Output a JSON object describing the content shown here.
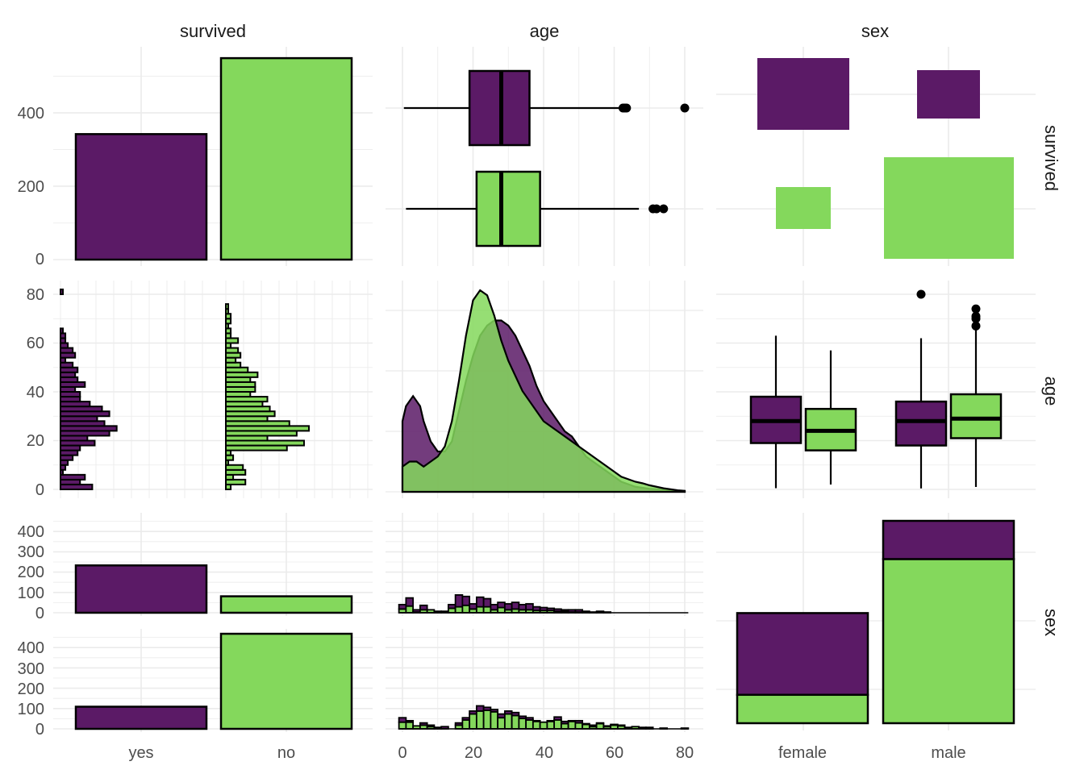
{
  "colors": {
    "yes": "#5b1a66",
    "no": "#84d85c",
    "grid": "#ebebeb",
    "outline": "#000000"
  },
  "strips": {
    "top": [
      "survived",
      "age",
      "sex"
    ],
    "right": [
      "survived",
      "age",
      "sex"
    ]
  },
  "chart_data": [
    {
      "panel": "survived-survived",
      "type": "bar",
      "categories": [
        "yes",
        "no"
      ],
      "values": [
        342,
        549
      ],
      "ylim": [
        0,
        580
      ],
      "yticks": [
        0,
        200,
        400
      ]
    },
    {
      "panel": "age-survived",
      "type": "boxplot",
      "series": [
        {
          "name": "yes",
          "whisker_low": 0.4,
          "q1": 19,
          "median": 28,
          "q3": 36,
          "whisker_high": 62,
          "outliers": [
            62.5,
            63,
            63.5,
            80
          ]
        },
        {
          "name": "no",
          "whisker_low": 1,
          "q1": 21,
          "median": 28,
          "q3": 39,
          "whisker_high": 67,
          "outliers": [
            71,
            72,
            74
          ]
        }
      ],
      "xlim": [
        -1,
        82
      ]
    },
    {
      "panel": "sex-survived",
      "type": "mosaic",
      "categories": [
        "female",
        "male"
      ],
      "rows": [
        "yes",
        "no"
      ],
      "counts": {
        "female": {
          "yes": 233,
          "no": 81
        },
        "male": {
          "yes": 109,
          "no": 468
        }
      }
    },
    {
      "panel": "survived-age",
      "type": "histogram",
      "orientation": "horizontal",
      "bin_width": 2,
      "ylim": [
        -1,
        83
      ],
      "yticks": [
        0,
        20,
        40,
        60,
        80
      ],
      "series": [
        {
          "name": "yes",
          "bins": [
            0,
            2,
            4,
            6,
            8,
            10,
            12,
            14,
            16,
            18,
            20,
            22,
            24,
            26,
            28,
            30,
            32,
            34,
            36,
            38,
            40,
            42,
            44,
            46,
            48,
            50,
            52,
            54,
            56,
            58,
            60,
            62,
            64,
            80
          ],
          "counts": [
            13,
            8,
            10,
            1,
            2,
            3,
            5,
            7,
            8,
            14,
            11,
            20,
            23,
            18,
            15,
            20,
            17,
            12,
            8,
            8,
            6,
            10,
            7,
            6,
            7,
            5,
            2,
            6,
            5,
            3,
            2,
            2,
            1,
            1
          ]
        },
        {
          "name": "no",
          "bins": [
            0,
            2,
            4,
            6,
            8,
            10,
            12,
            14,
            16,
            18,
            20,
            22,
            24,
            26,
            28,
            30,
            32,
            34,
            36,
            38,
            40,
            42,
            44,
            46,
            48,
            50,
            52,
            54,
            56,
            58,
            60,
            62,
            64,
            66,
            68,
            70,
            72,
            74
          ],
          "counts": [
            2,
            8,
            3,
            8,
            7,
            1,
            3,
            2,
            25,
            32,
            17,
            29,
            34,
            26,
            17,
            20,
            18,
            15,
            17,
            10,
            12,
            12,
            10,
            13,
            9,
            6,
            4,
            6,
            5,
            2,
            5,
            2,
            2,
            1,
            2,
            2,
            1,
            1
          ]
        }
      ],
      "xlim_counts": [
        0,
        36
      ]
    },
    {
      "panel": "age-age",
      "type": "area",
      "series": [
        {
          "name": "yes",
          "x": [
            0,
            1,
            3,
            5,
            6,
            8,
            10,
            12,
            14,
            16,
            18,
            20,
            22,
            24,
            26,
            28,
            30,
            32,
            34,
            36,
            38,
            40,
            42,
            44,
            46,
            48,
            50,
            52,
            54,
            56,
            58,
            60,
            62,
            64,
            66,
            68,
            70,
            72,
            74,
            76,
            78,
            80
          ],
          "y": [
            0.014,
            0.017,
            0.019,
            0.017,
            0.014,
            0.01,
            0.008,
            0.008,
            0.01,
            0.016,
            0.022,
            0.027,
            0.031,
            0.033,
            0.034,
            0.034,
            0.033,
            0.031,
            0.028,
            0.025,
            0.021,
            0.018,
            0.016,
            0.014,
            0.012,
            0.011,
            0.009,
            0.007,
            0.006,
            0.005,
            0.004,
            0.003,
            0.002,
            0.0015,
            0.001,
            0.0008,
            0.0006,
            0.0005,
            0.0004,
            0.0003,
            0.0002,
            0.0001
          ]
        },
        {
          "name": "no",
          "x": [
            0,
            2,
            4,
            6,
            8,
            10,
            12,
            14,
            16,
            18,
            20,
            22,
            24,
            26,
            28,
            30,
            32,
            34,
            36,
            38,
            40,
            42,
            44,
            46,
            48,
            50,
            52,
            54,
            56,
            58,
            60,
            62,
            64,
            66,
            68,
            70,
            72,
            74,
            76,
            78,
            80
          ],
          "y": [
            0.005,
            0.006,
            0.006,
            0.005,
            0.006,
            0.007,
            0.009,
            0.014,
            0.022,
            0.031,
            0.038,
            0.04,
            0.039,
            0.035,
            0.03,
            0.026,
            0.023,
            0.02,
            0.018,
            0.016,
            0.014,
            0.013,
            0.012,
            0.011,
            0.01,
            0.009,
            0.008,
            0.007,
            0.006,
            0.005,
            0.004,
            0.003,
            0.0025,
            0.002,
            0.0017,
            0.0013,
            0.001,
            0.0007,
            0.0005,
            0.0003,
            0.0002
          ]
        }
      ],
      "xlim": [
        -1,
        82
      ]
    },
    {
      "panel": "sex-age",
      "type": "boxplot",
      "groups": [
        "female",
        "male"
      ],
      "series": [
        {
          "group": "female",
          "name": "yes",
          "whisker_low": 0.5,
          "q1": 19,
          "median": 28,
          "q3": 38,
          "whisker_high": 63,
          "outliers": []
        },
        {
          "group": "female",
          "name": "no",
          "whisker_low": 2,
          "q1": 16,
          "median": 24,
          "q3": 33,
          "whisker_high": 57,
          "outliers": []
        },
        {
          "group": "male",
          "name": "yes",
          "whisker_low": 0.4,
          "q1": 18,
          "median": 28,
          "q3": 36,
          "whisker_high": 62,
          "outliers": [
            80
          ]
        },
        {
          "group": "male",
          "name": "no",
          "whisker_low": 1,
          "q1": 21,
          "median": 29,
          "q3": 39,
          "whisker_high": 66,
          "outliers": [
            67,
            70,
            71,
            74
          ]
        }
      ],
      "ylim": [
        -1,
        83
      ]
    },
    {
      "panel": "survived-sex",
      "type": "bar",
      "facets": [
        "female",
        "male"
      ],
      "categories": [
        "yes",
        "no"
      ],
      "values": {
        "female": [
          233,
          81
        ],
        "male": [
          109,
          468
        ]
      },
      "ylim": [
        0,
        480
      ],
      "yticks": [
        0,
        100,
        200,
        300,
        400
      ]
    },
    {
      "panel": "age-sex",
      "type": "histogram",
      "stacked": true,
      "bin_width": 2,
      "facets": [
        "female",
        "male"
      ],
      "x": [
        0,
        2,
        4,
        6,
        8,
        10,
        12,
        14,
        16,
        18,
        20,
        22,
        24,
        26,
        28,
        30,
        32,
        34,
        36,
        38,
        40,
        42,
        44,
        46,
        48,
        50,
        52,
        54,
        56,
        58,
        60,
        62,
        64,
        66,
        68,
        70,
        72,
        74,
        76,
        78,
        80
      ],
      "counts": {
        "female": {
          "yes": [
            6,
            11,
            3,
            6,
            0,
            0,
            1,
            5,
            16,
            12,
            7,
            13,
            11,
            7,
            7,
            8,
            9,
            7,
            8,
            5,
            4,
            3,
            3,
            2,
            3,
            3,
            0,
            0,
            1,
            1,
            0,
            0,
            0,
            0,
            0,
            0,
            0,
            0,
            0,
            0,
            0
          ],
          "no": [
            5,
            9,
            1,
            4,
            4,
            2,
            1,
            6,
            8,
            10,
            5,
            8,
            8,
            4,
            7,
            4,
            5,
            4,
            4,
            3,
            3,
            3,
            2,
            2,
            1,
            1,
            2,
            1,
            1,
            0,
            0,
            0,
            0,
            0,
            0,
            0,
            0,
            0,
            0,
            0,
            0
          ]
        },
        "male": {
          "yes": [
            6,
            2,
            0,
            3,
            2,
            0,
            3,
            0,
            3,
            3,
            4,
            7,
            4,
            3,
            5,
            4,
            4,
            3,
            3,
            1,
            0,
            1,
            4,
            3,
            1,
            3,
            1,
            2,
            1,
            1,
            1,
            1,
            0,
            0,
            0,
            0,
            0,
            0,
            0,
            0,
            0
          ],
          "no": [
            9,
            9,
            4,
            5,
            3,
            2,
            0,
            0,
            5,
            12,
            20,
            24,
            25,
            23,
            15,
            20,
            18,
            14,
            12,
            10,
            9,
            10,
            12,
            7,
            10,
            8,
            6,
            3,
            7,
            3,
            5,
            4,
            2,
            3,
            2,
            2,
            0,
            1,
            0,
            0,
            1
          ]
        }
      },
      "ylim": [
        0,
        480
      ],
      "yticks": [
        0,
        100,
        200,
        300,
        400
      ],
      "xticks": [
        0,
        20,
        40,
        60,
        80
      ]
    },
    {
      "panel": "sex-sex",
      "type": "stacked_bar",
      "categories": [
        "female",
        "male"
      ],
      "stacks": {
        "female": {
          "yes": 233,
          "no": 81
        },
        "male": {
          "yes": 109,
          "no": 468
        }
      },
      "ylim": [
        0,
        600
      ]
    }
  ],
  "axes": {
    "bottom_ticks": {
      "col1": [
        "yes",
        "no"
      ],
      "col2": [
        "0",
        "20",
        "40",
        "60",
        "80"
      ],
      "col3": [
        "female",
        "male"
      ]
    },
    "left_ticks": {
      "row1": [
        "0",
        "200",
        "400"
      ],
      "row2": [
        "0",
        "20",
        "40",
        "60",
        "80"
      ],
      "row3": [
        "0",
        "100",
        "200",
        "300",
        "400"
      ]
    }
  }
}
